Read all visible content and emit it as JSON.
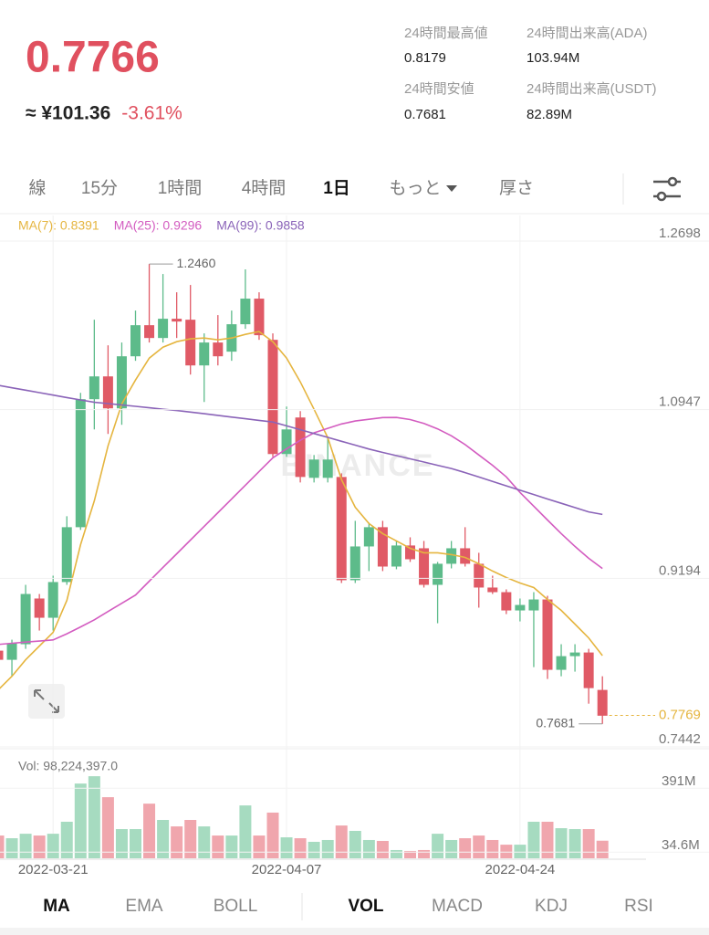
{
  "header": {
    "price": "0.7766",
    "fiat": "≈ ¥101.36",
    "change": "-3.61%",
    "stats": [
      {
        "label": "24時間最高値",
        "value": "0.8179"
      },
      {
        "label": "24時間出来高(ADA)",
        "value": "103.94M"
      },
      {
        "label": "24時間安値",
        "value": "0.7681"
      },
      {
        "label": "24時間出来高(USDT)",
        "value": "82.89M"
      }
    ]
  },
  "tabs": [
    "線",
    "15分",
    "1時間",
    "4時間",
    "1日",
    "もっと",
    "厚さ"
  ],
  "active_tab": 4,
  "chart_data": {
    "type": "candlestick",
    "categories": [
      null,
      null,
      null,
      null,
      "2022-03-21",
      null,
      null,
      null,
      null,
      null,
      null,
      null,
      null,
      null,
      null,
      null,
      null,
      null,
      null,
      null,
      null,
      "2022-04-07",
      null,
      null,
      null,
      null,
      null,
      null,
      null,
      null,
      null,
      null,
      null,
      null,
      null,
      null,
      null,
      null,
      "2022-04-24",
      null,
      null,
      null,
      null,
      null,
      null
    ],
    "open": [
      0.8442,
      0.8347,
      0.8509,
      0.8984,
      0.8784,
      0.9155,
      0.9725,
      1.1055,
      1.1292,
      1.096,
      1.1501,
      1.1824,
      1.1691,
      1.1891,
      1.1881,
      1.1406,
      1.1644,
      1.1549,
      1.1834,
      1.21,
      1.1672,
      1.0485,
      1.0865,
      1.0238,
      1.0238,
      1.0247,
      0.9174,
      0.9525,
      0.9725,
      0.9316,
      0.9535,
      0.9506,
      0.9126,
      0.9345,
      0.9506,
      0.9345,
      0.9098,
      0.905,
      0.886,
      0.886,
      0.8974,
      0.8243,
      0.8385,
      0.8423,
      0.8034
    ],
    "high": [
      0.8509,
      0.8556,
      0.9126,
      0.9031,
      0.9221,
      0.9839,
      1.1121,
      1.1881,
      1.1615,
      1.1644,
      1.1976,
      1.246,
      1.2356,
      1.2166,
      1.2242,
      1.1739,
      1.1929,
      1.1976,
      1.2404,
      1.2166,
      1.1739,
      1.0979,
      1.0931,
      1.0475,
      1.0665,
      1.0285,
      0.9791,
      0.9772,
      0.9791,
      0.9582,
      0.962,
      0.9582,
      0.9364,
      0.9582,
      0.9725,
      0.9459,
      0.9221,
      0.9079,
      0.8984,
      0.905,
      0.9012,
      0.8509,
      0.8509,
      0.8461,
      0.8176
    ],
    "low": [
      0.8319,
      0.8176,
      0.8461,
      0.8651,
      0.8651,
      0.9126,
      0.9696,
      1.0741,
      1.0694,
      1.0789,
      1.1454,
      1.1644,
      1.1644,
      1.1691,
      1.1311,
      1.1026,
      1.1406,
      1.1454,
      1.1786,
      1.1672,
      1.0456,
      1.0456,
      1.019,
      1.019,
      1.019,
      0.9145,
      0.9145,
      0.9269,
      0.9269,
      0.9288,
      0.9364,
      0.9098,
      0.8727,
      0.9297,
      0.9316,
      0.8889,
      0.9031,
      0.8822,
      0.8746,
      0.8271,
      0.8148,
      0.8176,
      0.8224,
      0.7891,
      0.7681
    ],
    "close": [
      0.8347,
      0.8518,
      0.9031,
      0.8784,
      0.9155,
      0.9725,
      1.1055,
      1.1292,
      1.096,
      1.1501,
      1.1824,
      1.1691,
      1.1891,
      1.1862,
      1.1406,
      1.1644,
      1.1501,
      1.1834,
      1.21,
      1.172,
      1.0485,
      1.0741,
      1.0247,
      1.0428,
      1.0428,
      0.9174,
      0.9525,
      0.9725,
      0.9316,
      0.9535,
      0.9392,
      0.9126,
      0.9345,
      0.9506,
      0.9345,
      0.9098,
      0.905,
      0.886,
      0.8917,
      0.8974,
      0.8243,
      0.8385,
      0.8423,
      0.8053,
      0.7766
    ],
    "up_color": "#5dbb8a",
    "down_color": "#e05a66",
    "series": [
      {
        "name": "MA(7): 0.8391",
        "color": "#e5b53f",
        "values": [
          0.8034,
          0.8176,
          0.8347,
          0.849,
          0.8632,
          0.8965,
          0.9544,
          1.0,
          1.057,
          1.1007,
          1.1254,
          1.1482,
          1.1596,
          1.1653,
          1.1682,
          1.1691,
          1.1672,
          1.1691,
          1.1729,
          1.1758,
          1.1653,
          1.1482,
          1.1235,
          1.095,
          1.0656,
          1.0219,
          0.9933,
          0.9763,
          0.9658,
          0.9582,
          0.9506,
          0.9459,
          0.9459,
          0.944,
          0.9411,
          0.9345,
          0.9269,
          0.9202,
          0.9145,
          0.9098,
          0.8974,
          0.886,
          0.8718,
          0.8575,
          0.8391
        ]
      },
      {
        "name": "MA(25): 0.9296",
        "color": "#d35cc0",
        "values": [
          0.8507,
          0.8519,
          0.8531,
          0.8542,
          0.8554,
          0.8618,
          0.8689,
          0.8763,
          0.8849,
          0.8934,
          0.902,
          0.9164,
          0.9307,
          0.9449,
          0.9591,
          0.9734,
          0.9876,
          1.0019,
          1.0161,
          1.0304,
          1.0446,
          1.0539,
          1.0628,
          1.0706,
          1.0752,
          1.0798,
          1.0828,
          1.0846,
          1.0864,
          1.0865,
          1.0843,
          1.0804,
          1.0747,
          1.0675,
          1.0583,
          1.0475,
          1.0368,
          1.0248,
          1.0086,
          0.9943,
          0.98,
          0.9658,
          0.9526,
          0.9402,
          0.9296
        ]
      },
      {
        "name": "MA(99): 0.9858",
        "color": "#8a63b8",
        "values": [
          1.12,
          1.1174,
          1.1149,
          1.1123,
          1.1098,
          1.1072,
          1.1047,
          1.1023,
          1.1009,
          1.0995,
          1.0981,
          1.0966,
          1.0951,
          1.0937,
          1.0921,
          1.0904,
          1.0887,
          1.0869,
          1.0852,
          1.0835,
          1.0818,
          1.0778,
          1.0738,
          1.0698,
          1.0658,
          1.0618,
          1.0578,
          1.0537,
          1.0502,
          1.0469,
          1.0435,
          1.0402,
          1.0368,
          1.0335,
          1.0292,
          1.0247,
          1.0201,
          1.0155,
          1.0109,
          1.0064,
          1.0018,
          0.9973,
          0.9929,
          0.9884,
          0.9858
        ]
      }
    ],
    "ylim": [
      0.7423,
      1.2964
    ],
    "yticks": [
      1.2698,
      1.0947,
      0.9194,
      0.7442
    ],
    "annotations": [
      {
        "label": "1.2460",
        "value": 1.246
      },
      {
        "label": "0.7681",
        "value": 0.7681
      }
    ],
    "last_price": 0.7769,
    "last_price_color": "#e5b53f",
    "watermark": "BINANCE",
    "volume": {
      "label": "Vol: 98,224,397.0",
      "up_color": "#a6dbc0",
      "down_color": "#f0a6ad",
      "values": [
        127,
        112,
        137,
        127,
        137,
        204,
        417,
        458,
        341,
        163,
        163,
        305,
        214,
        178,
        214,
        178,
        127,
        127,
        295,
        127,
        255,
        117,
        112,
        92,
        102,
        183,
        153,
        102,
        97,
        46,
        41,
        46,
        137,
        102,
        112,
        127,
        102,
        76,
        76,
        204,
        204,
        168,
        163,
        163,
        98.224397
      ],
      "vlim": [
        0,
        484
      ],
      "vticks": [
        {
          "value": 391,
          "label": "391M"
        },
        {
          "value": 34.6,
          "label": "34.6M"
        }
      ]
    }
  },
  "indicator_tabs": {
    "main": [
      "MA",
      "EMA",
      "BOLL"
    ],
    "sub": [
      "VOL",
      "MACD",
      "KDJ",
      "RSI"
    ],
    "active_main": 0,
    "active_sub": 0
  }
}
